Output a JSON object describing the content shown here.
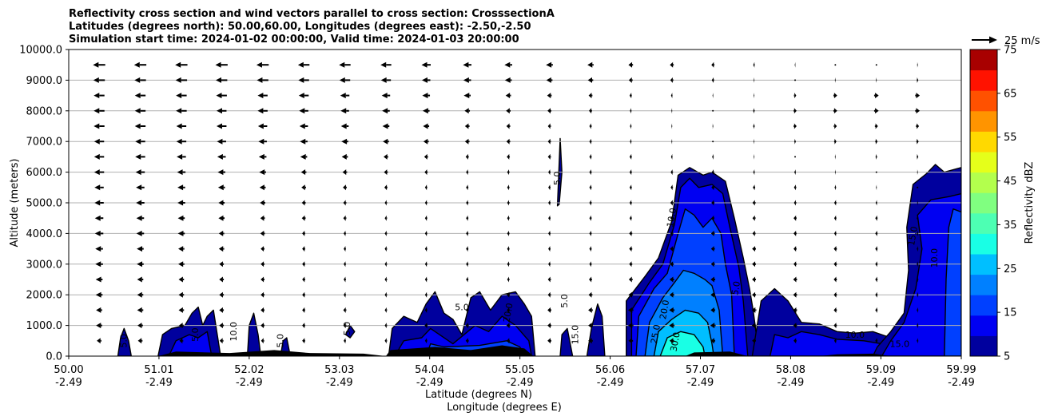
{
  "chart_data": {
    "type": "contour",
    "title_lines": [
      "Reflectivity cross section and wind vectors parallel to cross section: CrosssectionA",
      "Latitudes (degrees north): 50.00,60.00, Longitudes (degrees east): -2.50,-2.50",
      "Simulation start time: 2024-01-02 00:00:00, Valid time: 2024-01-03 20:00:00"
    ],
    "ylabel": "Altitude (meters)",
    "xlabel_lines": [
      "Latitude (degrees N)",
      "Longitude (degrees E)"
    ],
    "ylim": [
      0,
      10000
    ],
    "y_ticks": [
      "0.0",
      "1000.0",
      "2000.0",
      "3000.0",
      "4000.0",
      "5000.0",
      "6000.0",
      "7000.0",
      "8000.0",
      "9000.0",
      "10000.0"
    ],
    "x_ticks": [
      {
        "lat": "50.00",
        "lon": "-2.49"
      },
      {
        "lat": "51.01",
        "lon": "-2.49"
      },
      {
        "lat": "52.02",
        "lon": "-2.49"
      },
      {
        "lat": "53.03",
        "lon": "-2.49"
      },
      {
        "lat": "54.04",
        "lon": "-2.49"
      },
      {
        "lat": "55.05",
        "lon": "-2.49"
      },
      {
        "lat": "56.06",
        "lon": "-2.49"
      },
      {
        "lat": "57.07",
        "lon": "-2.49"
      },
      {
        "lat": "58.08",
        "lon": "-2.49"
      },
      {
        "lat": "59.09",
        "lon": "-2.49"
      },
      {
        "lat": "59.99",
        "lon": "-2.49"
      }
    ],
    "grid": "horizontal",
    "quiver_key": "25 m/s",
    "colorbar": {
      "label": "Reflectivity dBZ",
      "ticks": [
        "5",
        "15",
        "25",
        "35",
        "45",
        "55",
        "65",
        "75"
      ],
      "levels": [
        5,
        10,
        15,
        20,
        25,
        30,
        35,
        40,
        45,
        50,
        55,
        60,
        65,
        70,
        75
      ],
      "colors": [
        "#00009e",
        "#0000f2",
        "#0040ff",
        "#0080ff",
        "#00bfff",
        "#19ffe5",
        "#4dffb3",
        "#80ff80",
        "#b3ff4d",
        "#e5ff1a",
        "#ffd900",
        "#ff9400",
        "#ff5100",
        "#ff1200",
        "#a80000"
      ]
    },
    "contour_labels": [
      "5.0",
      "10.0",
      "15.0",
      "20.0",
      "25.0",
      "30.0"
    ],
    "wind_vectors": {
      "unit": "m/s",
      "levels_m": [
        500,
        1000,
        1500,
        2000,
        2500,
        3000,
        3500,
        4000,
        4500,
        5000,
        5500,
        6000,
        6500,
        7000,
        7500,
        8000,
        8500,
        9000,
        9500
      ],
      "lat": [
        50.34,
        50.8,
        51.26,
        51.71,
        52.17,
        52.63,
        53.09,
        53.55,
        54.0,
        54.46,
        54.92,
        55.38,
        55.84,
        56.29,
        56.75,
        57.21,
        57.67,
        58.13,
        58.58,
        59.04,
        59.5
      ],
      "u_profile": {
        "9500": [
          -16,
          -16,
          -16,
          -16,
          -16,
          -15,
          -15,
          -14,
          -12,
          -11,
          -10,
          -9,
          -8,
          -6,
          -5,
          -4,
          -2,
          -1,
          0,
          0,
          1
        ],
        "9000": [
          -15,
          -15,
          -15,
          -15,
          -15,
          -14,
          -14,
          -13,
          -11,
          -10,
          -9,
          -8,
          -7,
          -5,
          -4,
          -3,
          -1,
          0,
          1,
          1,
          2
        ],
        "8500": [
          -14,
          -14,
          -14,
          -14,
          -13,
          -13,
          -12,
          -11,
          -10,
          -9,
          -7,
          -6,
          -5,
          -3,
          -2,
          -1,
          1,
          3,
          5,
          6,
          6
        ],
        "8000": [
          -14,
          -14,
          -14,
          -13,
          -13,
          -12,
          -11,
          -10,
          -9,
          -7,
          -6,
          -5,
          -4,
          -2,
          -1,
          0,
          2,
          4,
          5,
          6,
          6
        ],
        "7500": [
          -14,
          -14,
          -13,
          -13,
          -12,
          -11,
          -10,
          -9,
          -8,
          -6,
          -5,
          -4,
          -3,
          -2,
          -1,
          1,
          2,
          4,
          4,
          4,
          4
        ],
        "7000": [
          -13,
          -13,
          -13,
          -12,
          -11,
          -10,
          -9,
          -8,
          -7,
          -6,
          -5,
          -4,
          -3,
          -2,
          -1,
          0,
          1,
          2,
          3,
          3,
          3
        ],
        "6500": [
          -13,
          -13,
          -12,
          -11,
          -10,
          -9,
          -8,
          -6,
          -5,
          -4,
          -4,
          -4,
          -3,
          -3,
          -2,
          -2,
          -1,
          0,
          1,
          2,
          2
        ],
        "6000": [
          -13,
          -12,
          -11,
          -10,
          -9,
          -7,
          -6,
          -5,
          -4,
          -3,
          -3,
          -3,
          -3,
          -3,
          -3,
          -3,
          -2,
          -2,
          -1,
          0,
          1
        ],
        "5500": [
          -12,
          -11,
          -10,
          -9,
          -8,
          -6,
          -5,
          -4,
          -3,
          -3,
          -3,
          -3,
          -3,
          -3,
          -3,
          -4,
          -3,
          -3,
          -2,
          -1,
          0
        ],
        "5000": [
          -12,
          -11,
          -10,
          -8,
          -7,
          -5,
          -4,
          -3,
          -3,
          -3,
          -3,
          -3,
          -3,
          -3,
          -4,
          -4,
          -4,
          -3,
          -3,
          -2,
          -1
        ],
        "4500": [
          -11,
          -10,
          -9,
          -8,
          -6,
          -5,
          -4,
          -3,
          -3,
          -3,
          -3,
          -3,
          -3,
          -3,
          -4,
          -4,
          -4,
          -4,
          -3,
          -3,
          -2
        ],
        "4000": [
          -11,
          -10,
          -9,
          -7,
          -6,
          -4,
          -3,
          -3,
          -3,
          -3,
          -3,
          -3,
          -3,
          -4,
          -4,
          -5,
          -4,
          -4,
          -3,
          -3,
          -2
        ],
        "3500": [
          -10,
          -9,
          -8,
          -7,
          -5,
          -4,
          -3,
          -3,
          -3,
          -3,
          -3,
          -3,
          -3,
          -4,
          -5,
          -5,
          -5,
          -4,
          -4,
          -3,
          -2
        ],
        "3000": [
          -10,
          -9,
          -8,
          -6,
          -5,
          -4,
          -3,
          -3,
          -3,
          -3,
          -3,
          -3,
          -3,
          -4,
          -5,
          -5,
          -5,
          -4,
          -4,
          -3,
          -2
        ],
        "2500": [
          -9,
          -8,
          -7,
          -6,
          -5,
          -4,
          -3,
          -3,
          -3,
          -3,
          -3,
          -4,
          -4,
          -5,
          -6,
          -6,
          -5,
          -5,
          -4,
          -3,
          -2
        ],
        "2000": [
          -9,
          -8,
          -7,
          -6,
          -5,
          -4,
          -3,
          -3,
          -3,
          -3,
          -4,
          -4,
          -5,
          -6,
          -6,
          -6,
          -5,
          -5,
          -4,
          -3,
          -2
        ],
        "1500": [
          -8,
          -8,
          -7,
          -6,
          -5,
          -4,
          -4,
          -3,
          -3,
          -4,
          -4,
          -5,
          -6,
          -7,
          -7,
          -6,
          -6,
          -5,
          -4,
          -3,
          -2
        ],
        "1000": [
          -8,
          -7,
          -6,
          -6,
          -5,
          -4,
          -4,
          -3,
          -4,
          -4,
          -5,
          -5,
          -6,
          -7,
          -7,
          -7,
          -6,
          -5,
          -4,
          -3,
          -2
        ],
        "500": [
          -6,
          -6,
          -5,
          -5,
          -4,
          -4,
          -3,
          -3,
          -3,
          -4,
          -4,
          -5,
          -6,
          -6,
          -6,
          -6,
          -5,
          -4,
          -3,
          -3,
          -2
        ]
      }
    }
  }
}
